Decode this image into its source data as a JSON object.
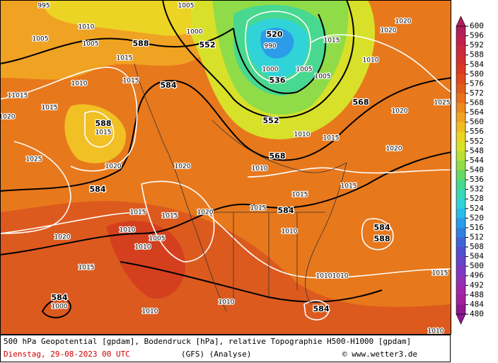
{
  "header": {
    "caption": "500 hPa Geopotential [gpdam], Bodendruck [hPa], relative Topographie H500-H1000 [gpdam]",
    "date": "Dienstag, 29-08-2023  00 UTC",
    "model": "(GFS)  (Analyse)",
    "credit": "© www.wetter3.de"
  },
  "colorbar": {
    "ticks": [
      600,
      596,
      592,
      588,
      584,
      580,
      576,
      572,
      568,
      564,
      560,
      556,
      552,
      548,
      544,
      540,
      536,
      532,
      528,
      524,
      520,
      516,
      512,
      508,
      504,
      500,
      496,
      492,
      488,
      484,
      480
    ],
    "colors": [
      "#b01e5e",
      "#c0204e",
      "#c82a40",
      "#d03030",
      "#d83a24",
      "#e04a1c",
      "#e05c1c",
      "#e8701c",
      "#ec8a1e",
      "#f0a222",
      "#f0bc22",
      "#ecd424",
      "#d8e02a",
      "#b8e034",
      "#90dc48",
      "#68d864",
      "#48d890",
      "#38d8b8",
      "#30d4d8",
      "#28bce8",
      "#2c9ce8",
      "#3480e0",
      "#4064d8",
      "#5050d0",
      "#6844c8",
      "#8038c0",
      "#9430b4",
      "#a028a8",
      "#a0209c",
      "#8c1890"
    ]
  },
  "map_labels": [
    "995",
    "1010",
    "1005",
    "1005",
    "588",
    "1015",
    "1010",
    "11015",
    "1015",
    "1020",
    "588",
    "1015",
    "1025",
    "1020",
    "584",
    "1020",
    "1015",
    "584",
    "1000",
    "584",
    "1015",
    "552",
    "1005",
    "1000",
    "520",
    "990",
    "536",
    "1000",
    "1005",
    "1005",
    "552",
    "568",
    "1015",
    "1020",
    "1020",
    "1010",
    "1025",
    "1020",
    "1020",
    "568",
    "1015",
    "1010",
    "1010",
    "1015",
    "1015",
    "584",
    "1015",
    "1010",
    "584",
    "588",
    "1010",
    "1010",
    "1015",
    "584",
    "1010",
    "1010",
    "1010",
    "1015",
    "1005",
    "1010",
    "1015",
    "1010",
    "1020",
    "1020"
  ]
}
